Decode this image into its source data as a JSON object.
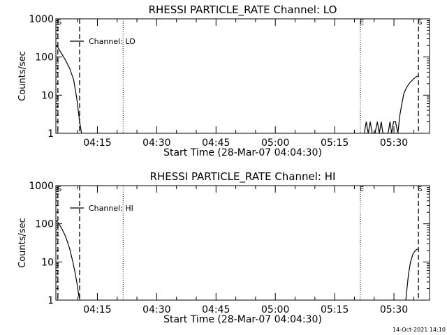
{
  "footer_timestamp": "14-Oct-2021 14:10",
  "chart_data": [
    {
      "type": "line",
      "title": "RHESSI PARTICLE_RATE Channel: LO",
      "xlabel": "Start Time (28-Mar-07 04:04:30)",
      "ylabel": "Counts/sec",
      "yscale": "log",
      "ylim": [
        1,
        1000
      ],
      "xlim_minutes": [
        4.5,
        99.0
      ],
      "x_ticks": [
        {
          "t": 15,
          "label": "04:15"
        },
        {
          "t": 30,
          "label": "04:30"
        },
        {
          "t": 45,
          "label": "04:45"
        },
        {
          "t": 60,
          "label": "05:00"
        },
        {
          "t": 75,
          "label": "05:15"
        },
        {
          "t": 90,
          "label": "05:30"
        }
      ],
      "y_ticks": [
        {
          "v": 1,
          "label": "1"
        },
        {
          "v": 10,
          "label": "10"
        },
        {
          "v": 100,
          "label": "100"
        },
        {
          "v": 1000,
          "label": "1000"
        }
      ],
      "legend": {
        "label": "Channel: LO",
        "position": "top-left"
      },
      "markers": [
        {
          "t": 5.0,
          "style": "dashed",
          "label": "S"
        },
        {
          "t": 10.5,
          "style": "dashed",
          "label": ""
        },
        {
          "t": 21.5,
          "style": "dotted",
          "label": ""
        },
        {
          "t": 81.5,
          "style": "dotted",
          "label": "E"
        },
        {
          "t": 96.2,
          "style": "dashed",
          "label": "S"
        }
      ],
      "series": [
        {
          "name": "Channel: LO",
          "points": [
            [
              4.5,
              200
            ],
            [
              5,
              180
            ],
            [
              6,
              120
            ],
            [
              7,
              80
            ],
            [
              8,
              50
            ],
            [
              9,
              25
            ],
            [
              9.8,
              8
            ],
            [
              10.3,
              3
            ],
            [
              10.7,
              1.5
            ],
            [
              11,
              1
            ]
          ]
        },
        {
          "name": "Channel: LO",
          "points": [
            [
              82.5,
              1
            ],
            [
              83,
              2
            ],
            [
              83.5,
              1
            ],
            [
              84,
              2
            ],
            [
              84.5,
              1
            ],
            [
              85.2,
              1
            ],
            [
              85.8,
              2
            ],
            [
              86.3,
              1
            ],
            [
              86.8,
              2
            ],
            [
              87.2,
              1
            ],
            [
              88.5,
              1
            ],
            [
              89,
              2
            ],
            [
              89.4,
              1
            ],
            [
              89.9,
              2
            ],
            [
              90.4,
              2
            ],
            [
              91,
              1
            ],
            [
              91.5,
              3
            ],
            [
              92,
              6
            ],
            [
              92.5,
              11
            ],
            [
              93.2,
              16
            ],
            [
              94,
              21
            ],
            [
              95,
              27
            ],
            [
              96,
              32
            ]
          ]
        }
      ]
    },
    {
      "type": "line",
      "title": "RHESSI PARTICLE_RATE Channel: HI",
      "xlabel": "Start Time (28-Mar-07 04:04:30)",
      "ylabel": "Counts/sec",
      "yscale": "log",
      "ylim": [
        1,
        1000
      ],
      "xlim_minutes": [
        4.5,
        99.0
      ],
      "x_ticks": [
        {
          "t": 15,
          "label": "04:15"
        },
        {
          "t": 30,
          "label": "04:30"
        },
        {
          "t": 45,
          "label": "04:45"
        },
        {
          "t": 60,
          "label": "05:00"
        },
        {
          "t": 75,
          "label": "05:15"
        },
        {
          "t": 90,
          "label": "05:30"
        }
      ],
      "y_ticks": [
        {
          "v": 1,
          "label": "1"
        },
        {
          "v": 10,
          "label": "10"
        },
        {
          "v": 100,
          "label": "100"
        },
        {
          "v": 1000,
          "label": "1000"
        }
      ],
      "legend": {
        "label": "Channel: HI",
        "position": "top-left"
      },
      "markers": [
        {
          "t": 5.0,
          "style": "dashed",
          "label": "S"
        },
        {
          "t": 10.5,
          "style": "dashed",
          "label": ""
        },
        {
          "t": 21.5,
          "style": "dotted",
          "label": ""
        },
        {
          "t": 81.5,
          "style": "dotted",
          "label": "E"
        },
        {
          "t": 96.2,
          "style": "dashed",
          "label": "S"
        }
      ],
      "series": [
        {
          "name": "Channel: HI",
          "points": [
            [
              4.5,
              120
            ],
            [
              5,
              110
            ],
            [
              6,
              75
            ],
            [
              7,
              45
            ],
            [
              8,
              22
            ],
            [
              8.8,
              10
            ],
            [
              9.4,
              5
            ],
            [
              9.9,
              2.5
            ],
            [
              10.3,
              1.3
            ],
            [
              10.6,
              1
            ]
          ]
        },
        {
          "name": "Channel: HI",
          "points": [
            [
              93,
              1
            ],
            [
              93.3,
              2
            ],
            [
              93.7,
              5
            ],
            [
              94.2,
              10
            ],
            [
              94.8,
              16
            ],
            [
              95.4,
              20
            ],
            [
              96,
              22
            ]
          ]
        }
      ]
    }
  ]
}
